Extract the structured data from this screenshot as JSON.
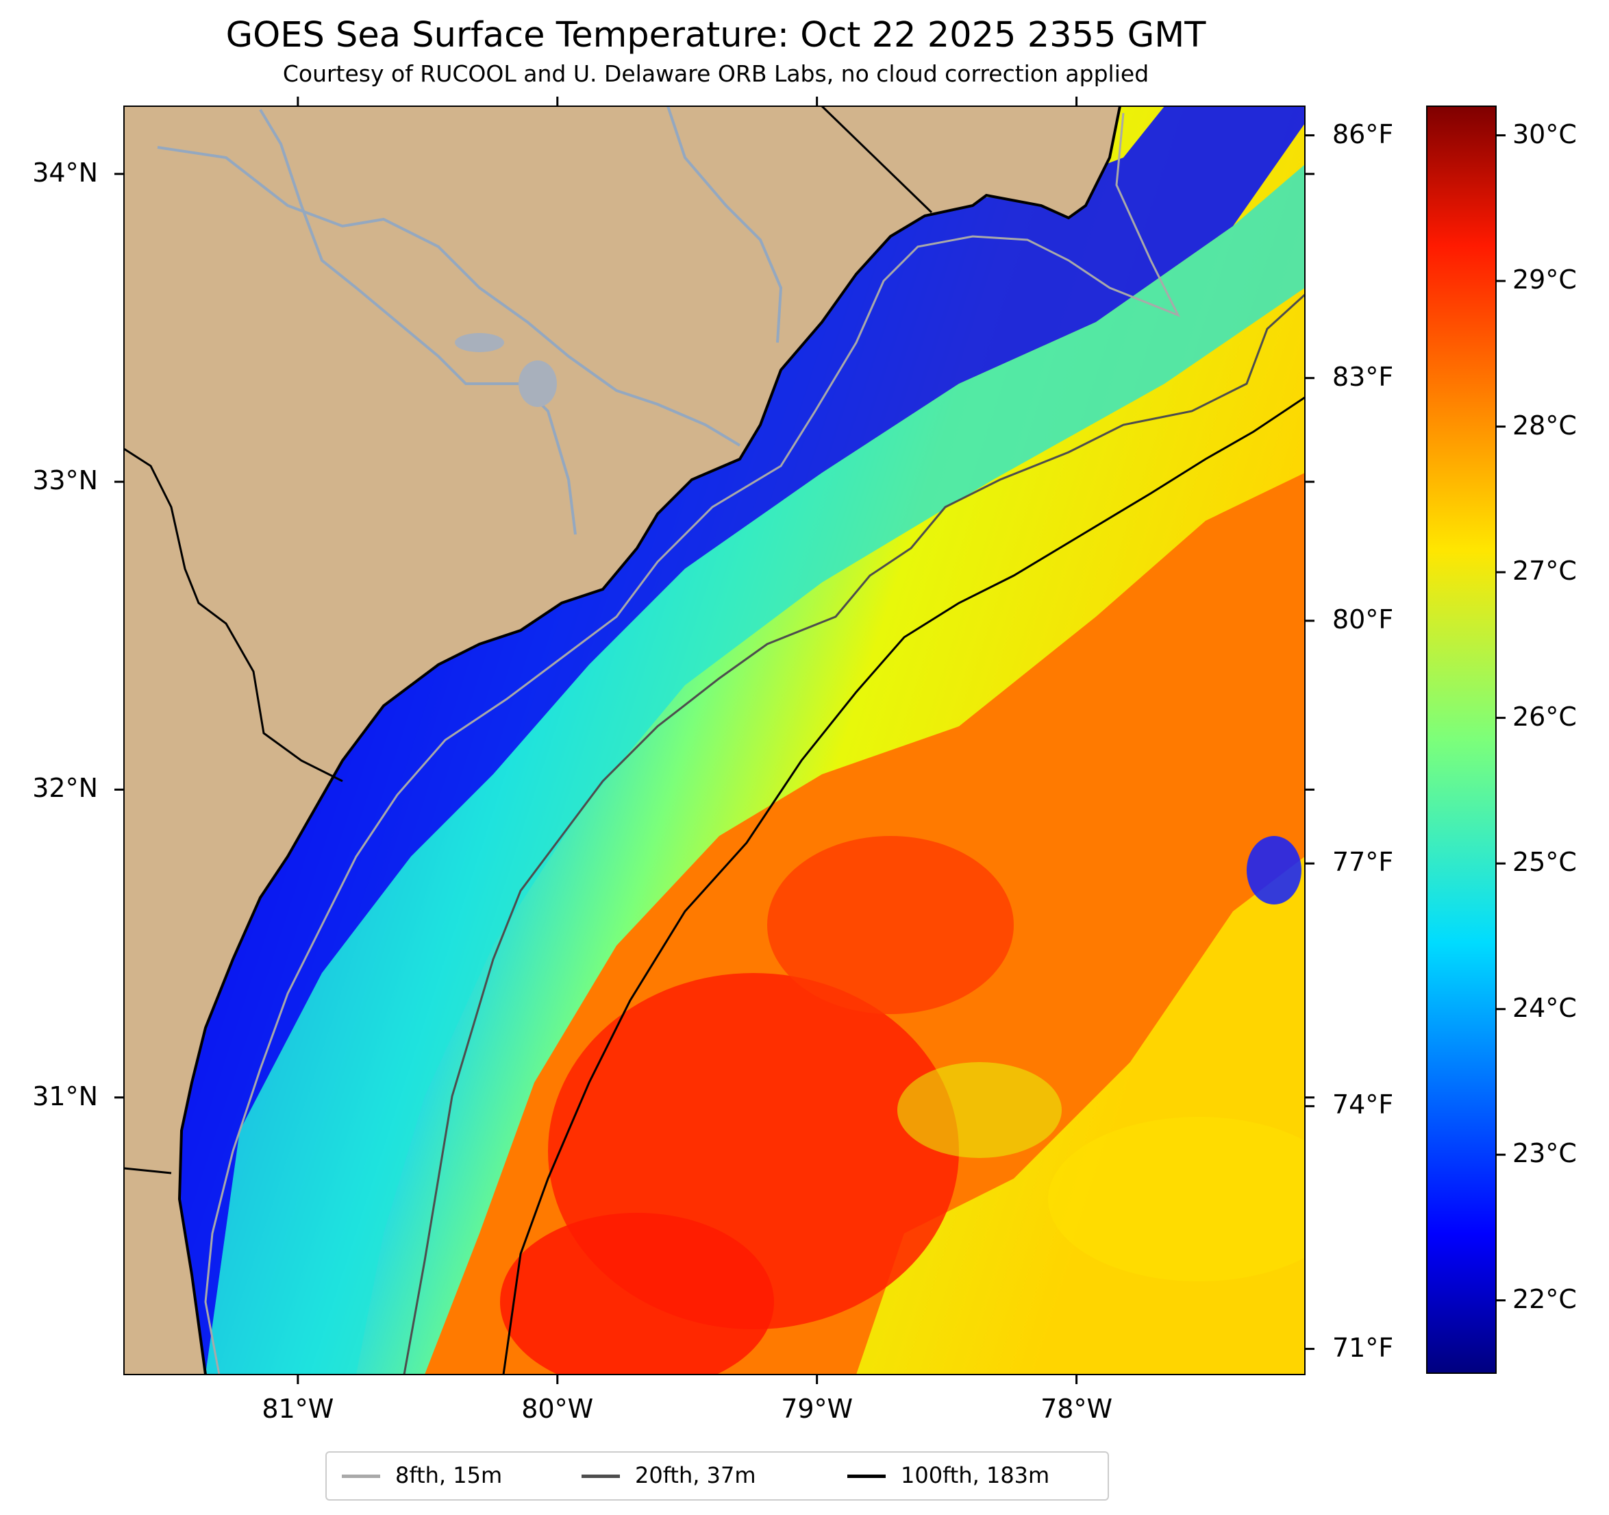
{
  "title": "GOES Sea Surface Temperature: Oct 22 2025 2355 GMT",
  "subtitle": "Courtesy of RUCOOL and U. Delaware ORB Labs, no cloud correction applied",
  "map": {
    "extent": {
      "lon": [
        -81.67,
        -77.12
      ],
      "lat": [
        30.1,
        34.22
      ]
    },
    "land_color": "#d2b48c",
    "lon_ticks": [
      {
        "value": -81,
        "label": "81°W"
      },
      {
        "value": -80,
        "label": "80°W"
      },
      {
        "value": -79,
        "label": "79°W"
      },
      {
        "value": -78,
        "label": "78°W"
      }
    ],
    "lat_ticks": [
      {
        "value": 34,
        "label": "34°N"
      },
      {
        "value": 33,
        "label": "33°N"
      },
      {
        "value": 32,
        "label": "32°N"
      },
      {
        "value": 31,
        "label": "31°N"
      }
    ],
    "fahrenheit_ticks": [
      "86°F",
      "83°F",
      "80°F",
      "77°F",
      "74°F",
      "71°F"
    ]
  },
  "colorbar": {
    "range_c": [
      21.5,
      30.2
    ],
    "colormap": "jet",
    "ticks": [
      "30°C",
      "29°C",
      "28°C",
      "27°C",
      "26°C",
      "25°C",
      "24°C",
      "23°C",
      "22°C"
    ]
  },
  "legend": [
    {
      "label": "8fth, 15m",
      "color": "#a9a9a9"
    },
    {
      "label": "20fth, 37m",
      "color": "#4d4d4d"
    },
    {
      "label": "100fth, 183m",
      "color": "#000000"
    }
  ]
}
